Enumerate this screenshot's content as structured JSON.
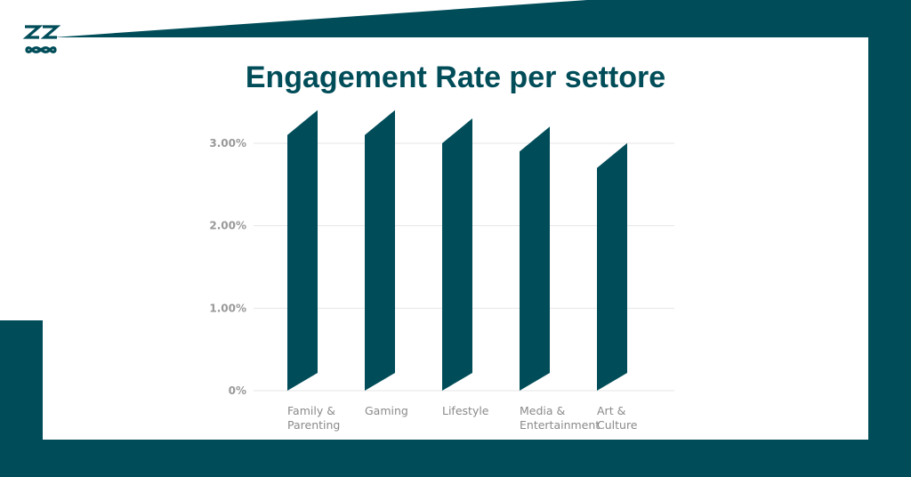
{
  "header": {
    "title": "Engagement Rate per settore",
    "logo_icon": "zz-infinity-logo-icon"
  },
  "colors": {
    "background": "#004d59",
    "panel": "#ffffff",
    "bar": "#004d59",
    "grid": "#e6e6e6",
    "tick_text": "#999999"
  },
  "chart_data": {
    "type": "bar",
    "title": "Engagement Rate per settore",
    "xlabel": "",
    "ylabel": "",
    "categories": [
      [
        "Family &",
        "Parenting"
      ],
      [
        "Gaming"
      ],
      [
        "Lifestyle"
      ],
      [
        "Media &",
        "Entertainment"
      ],
      [
        "Art &",
        "Culture"
      ]
    ],
    "values": [
      3.1,
      3.1,
      3.0,
      2.9,
      2.7
    ],
    "y_ticks": [
      "0%",
      "1.00%",
      "2.00%",
      "3.00%"
    ],
    "y_tick_values": [
      0,
      1,
      2,
      3
    ],
    "ylim": [
      0,
      3.0
    ],
    "grid": true,
    "legend": "none"
  }
}
